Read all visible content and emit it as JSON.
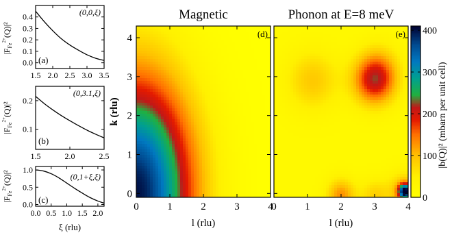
{
  "chart_data": [
    {
      "panel": "a",
      "type": "line",
      "panel_label": "(a)",
      "direction_label": "(0,0,ξ)",
      "ylabel_main": "|F",
      "ylabel_sub": "Fe",
      "ylabel_sup": "2+",
      "ylabel_tail": "(Q)|²",
      "xlim": [
        1.5,
        3.5
      ],
      "ylim": [
        -0.05,
        0.5
      ],
      "xticks": [
        "1.5",
        "2.0",
        "2.5",
        "3.0",
        "3.5"
      ],
      "yticks": [
        "0.0",
        "0.1",
        "0.2",
        "0.3",
        "0.4"
      ],
      "x": [
        1.5,
        1.75,
        2.0,
        2.25,
        2.5,
        2.75,
        3.0,
        3.25,
        3.5
      ],
      "y": [
        0.45,
        0.36,
        0.28,
        0.21,
        0.155,
        0.11,
        0.07,
        0.04,
        0.02
      ]
    },
    {
      "panel": "b",
      "type": "line",
      "panel_label": "(b)",
      "direction_label": "(0,3.1,ξ)",
      "ylabel_main": "|F",
      "ylabel_sub": "Fe",
      "ylabel_sup": "2+",
      "ylabel_tail": "(Q)|²",
      "xlim": [
        1.5,
        2.5
      ],
      "ylim": [
        0.03,
        0.25
      ],
      "xticks": [
        "1.5",
        "2.0",
        "2.5"
      ],
      "yticks": [
        "0.1",
        "0.2"
      ],
      "x": [
        1.5,
        1.625,
        1.75,
        1.875,
        2.0,
        2.125,
        2.25,
        2.375,
        2.5
      ],
      "y": [
        0.215,
        0.19,
        0.168,
        0.148,
        0.13,
        0.113,
        0.097,
        0.083,
        0.07
      ]
    },
    {
      "panel": "c",
      "type": "line",
      "panel_label": "(c)",
      "direction_label": "(0,1+ξ,ξ)",
      "ylabel_main": "|F",
      "ylabel_sub": "Fe",
      "ylabel_sup": "2+",
      "ylabel_tail": "(Q)|²",
      "xlabel": "ξ (rlu)",
      "xlim": [
        0.0,
        2.2
      ],
      "ylim": [
        -0.05,
        1.1
      ],
      "xticks": [
        "0.0",
        "0.5",
        "1.0",
        "1.5",
        "2.0"
      ],
      "yticks": [
        "0.0",
        "0.5",
        "1.0"
      ],
      "x": [
        0.0,
        0.25,
        0.5,
        0.75,
        1.0,
        1.25,
        1.5,
        1.75,
        2.0,
        2.2
      ],
      "y": [
        1.0,
        0.97,
        0.89,
        0.77,
        0.62,
        0.47,
        0.33,
        0.2,
        0.1,
        0.04
      ]
    },
    {
      "panel": "d",
      "type": "heatmap",
      "title": "Magnetic",
      "panel_label": "(d)",
      "xlabel": "l (rlu)",
      "ylabel": "k (rlu)",
      "xlim": [
        0,
        4
      ],
      "ylim": [
        -0.1,
        4.3
      ],
      "xticks": [
        "0",
        "1",
        "2",
        "3",
        "4"
      ],
      "yticks": [
        "0",
        "1",
        "2",
        "3",
        "4"
      ],
      "model": "radial-decay",
      "peak": 400,
      "center": [
        0,
        0
      ],
      "radial_scale": [
        3.0,
        9.4
      ]
    },
    {
      "panel": "e",
      "type": "heatmap",
      "title": "Phonon at E=8 meV",
      "panel_label": "(e)",
      "xlabel": "l (rlu)",
      "xlim": [
        0,
        4
      ],
      "ylim": [
        -0.1,
        4.3
      ],
      "xticks": [
        "0",
        "1",
        "2",
        "3",
        "4"
      ],
      "yticks": [
        "0",
        "1",
        "2",
        "3",
        "4"
      ],
      "background": 20,
      "peaks": [
        {
          "l": 3.0,
          "k": 2.9,
          "amplitude": 180,
          "width": 0.45
        },
        {
          "l": 3.15,
          "k": 3.3,
          "amplitude": 35,
          "width": 0.45
        },
        {
          "l": 1.15,
          "k": 2.9,
          "amplitude": 70,
          "width": 0.55
        },
        {
          "l": 2.0,
          "k": -0.05,
          "amplitude": 110,
          "width": 0.3
        },
        {
          "l": 3.0,
          "k": -0.05,
          "amplitude": 60,
          "width": 0.3
        },
        {
          "l": 3.9,
          "k": 0.05,
          "amplitude": 360,
          "width": 0.13
        },
        {
          "l": 3.9,
          "k": 0.05,
          "amplitude": 90,
          "width": 0.35
        }
      ]
    },
    {
      "panel": "colorbar",
      "type": "colorbar",
      "label": "|b(Q)|² (mbarn per unit cell)",
      "range": [
        0,
        410
      ],
      "ticks": [
        "0",
        "100",
        "200",
        "300",
        "400"
      ],
      "colormap": [
        [
          0,
          "#ffff00"
        ],
        [
          50,
          "#fff000"
        ],
        [
          100,
          "#ffc000"
        ],
        [
          150,
          "#ff7000"
        ],
        [
          185,
          "#e41a00"
        ],
        [
          215,
          "#c01818"
        ],
        [
          245,
          "#20b040"
        ],
        [
          285,
          "#00a090"
        ],
        [
          325,
          "#0078c0"
        ],
        [
          365,
          "#004a90"
        ],
        [
          410,
          "#000030"
        ]
      ]
    }
  ]
}
